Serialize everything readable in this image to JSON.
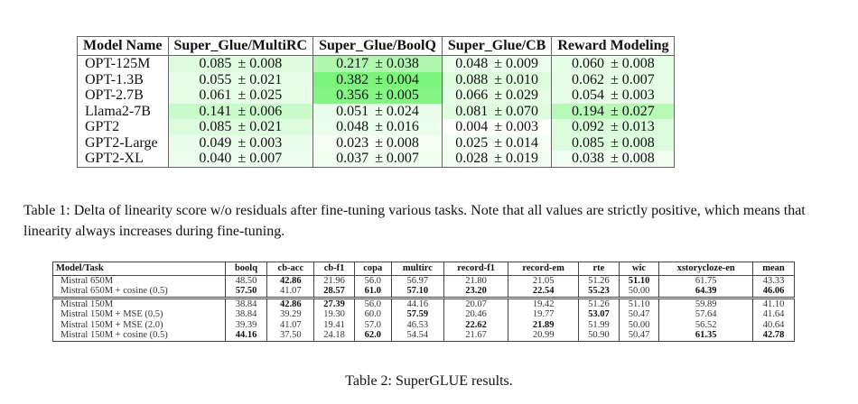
{
  "table1": {
    "headers": [
      "Model Name",
      "Super_Glue/MultiRC",
      "Super_Glue/BoolQ",
      "Super_Glue/CB",
      "Reward Modeling"
    ],
    "rows": [
      {
        "model": "OPT-125M",
        "cells": [
          [
            "0.085",
            "± 0.008"
          ],
          [
            "0.217",
            "± 0.038"
          ],
          [
            "0.048",
            "± 0.009"
          ],
          [
            "0.060",
            "± 0.008"
          ]
        ]
      },
      {
        "model": "OPT-1.3B",
        "cells": [
          [
            "0.055",
            "± 0.021"
          ],
          [
            "0.382",
            "± 0.004"
          ],
          [
            "0.088",
            "± 0.010"
          ],
          [
            "0.062",
            "± 0.007"
          ]
        ]
      },
      {
        "model": "OPT-2.7B",
        "cells": [
          [
            "0.061",
            "± 0.025"
          ],
          [
            "0.356",
            "± 0.005"
          ],
          [
            "0.066",
            "± 0.029"
          ],
          [
            "0.054",
            "± 0.003"
          ]
        ]
      },
      {
        "model": "Llama2-7B",
        "cells": [
          [
            "0.141",
            "± 0.006"
          ],
          [
            "0.051",
            "± 0.024"
          ],
          [
            "0.081",
            "± 0.070"
          ],
          [
            "0.194",
            "± 0.027"
          ]
        ]
      },
      {
        "model": "GPT2",
        "cells": [
          [
            "0.085",
            "± 0.021"
          ],
          [
            "0.048",
            "± 0.016"
          ],
          [
            "0.004",
            "± 0.003"
          ],
          [
            "0.092",
            "± 0.013"
          ]
        ]
      },
      {
        "model": "GPT2-Large",
        "cells": [
          [
            "0.049",
            "± 0.003"
          ],
          [
            "0.023",
            "± 0.008"
          ],
          [
            "0.025",
            "± 0.014"
          ],
          [
            "0.085",
            "± 0.008"
          ]
        ]
      },
      {
        "model": "GPT2-XL",
        "cells": [
          [
            "0.040",
            "± 0.007"
          ],
          [
            "0.037",
            "± 0.007"
          ],
          [
            "0.028",
            "± 0.019"
          ],
          [
            "0.038",
            "± 0.008"
          ]
        ]
      }
    ],
    "heat_color": "#7cf47c",
    "caption": "Table 1: Delta of linearity score w/o residuals after fine-tuning various tasks. Note that all values are strictly positive, which means that linearity always increases during fine-tuning."
  },
  "table2": {
    "headers": [
      "Model/Task",
      "boolq",
      "cb-acc",
      "cb-f1",
      "copa",
      "multirc",
      "record-f1",
      "record-em",
      "rte",
      "wic",
      "xstorycloze-en",
      "mean"
    ],
    "groups": [
      [
        {
          "model": "Mistral 650M",
          "values": [
            "48.50",
            "42.86",
            "21.96",
            "56.0",
            "56.97",
            "21.80",
            "21.05",
            "51.26",
            "51.10",
            "61.75",
            "43.33"
          ],
          "bold": [
            1,
            8
          ]
        },
        {
          "model": "Mistral 650M + cosine (0.5)",
          "values": [
            "57.50",
            "41.07",
            "28.57",
            "61.0",
            "57.10",
            "23.20",
            "22.54",
            "55.23",
            "50.00",
            "64.39",
            "46.06"
          ],
          "bold": [
            0,
            2,
            3,
            4,
            5,
            6,
            7,
            9,
            10
          ]
        }
      ],
      [
        {
          "model": "Mistral 150M",
          "values": [
            "38.84",
            "42.86",
            "27.39",
            "56.0",
            "44.16",
            "20.07",
            "19.42",
            "51.26",
            "51.10",
            "59.89",
            "41.10"
          ],
          "bold": [
            1,
            2
          ]
        },
        {
          "model": "Mistral 150M + MSE (0.5)",
          "values": [
            "38.84",
            "39.29",
            "19.30",
            "60.0",
            "57.59",
            "20.46",
            "19.77",
            "53.07",
            "50.47",
            "57.64",
            "41.64"
          ],
          "bold": [
            4,
            7
          ]
        },
        {
          "model": "Mistral 150M + MSE (2.0)",
          "values": [
            "39.39",
            "41.07",
            "19.41",
            "57.0",
            "46.53",
            "22.62",
            "21.89",
            "51.99",
            "50.00",
            "56.52",
            "40.64"
          ],
          "bold": [
            5,
            6
          ]
        },
        {
          "model": "Mistral 150M + cosine (0.5)",
          "values": [
            "44.16",
            "37.50",
            "24.18",
            "62.0",
            "54.54",
            "21.67",
            "20.99",
            "50.90",
            "50.47",
            "61.35",
            "42.78"
          ],
          "bold": [
            0,
            3,
            9,
            10
          ]
        }
      ]
    ],
    "caption": "Table 2: SuperGLUE results."
  }
}
